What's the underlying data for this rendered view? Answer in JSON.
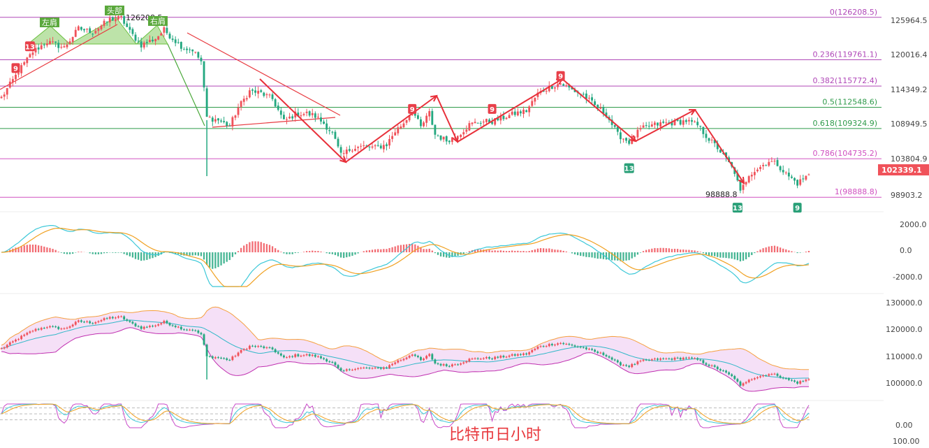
{
  "footer_title": "比特币日小时",
  "colors": {
    "up": "#f0525a",
    "down": "#24a880",
    "fib": "#b048b8",
    "fib_green": "#2e9a4a",
    "price_tag": "#f0525a",
    "ma_yellow": "#f0a020",
    "ma_cyan": "#3cc8d8",
    "ma_magenta": "#c848c8",
    "band_fill": "#f3d8f5",
    "arrow": "#e8303a",
    "shoulder": "#6cc040"
  },
  "price_axis": {
    "ticks": [
      "125964.5",
      "120016.4",
      "114349.2",
      "108949.5",
      "103804.9",
      "98903.2"
    ],
    "current_price": "102339.1",
    "low_label": "98888.8",
    "peak_label": "126208.5"
  },
  "fibonacci": [
    {
      "label": "0(126208.5)",
      "ratio": 0,
      "price": 126208.5
    },
    {
      "label": "0.236(119761.1)",
      "ratio": 0.236,
      "price": 119761.1
    },
    {
      "label": "0.382(115772.4)",
      "ratio": 0.382,
      "price": 115772.4
    },
    {
      "label": "0.5(112548.6)",
      "ratio": 0.5,
      "price": 112548.6
    },
    {
      "label": "0.618(109324.9)",
      "ratio": 0.618,
      "price": 109324.9
    },
    {
      "label": "0.786(104735.2)",
      "ratio": 0.786,
      "price": 104735.2
    },
    {
      "label": "1(98888.8)",
      "ratio": 1,
      "price": 98888.8
    }
  ],
  "patterns": {
    "left_shoulder": "左肩",
    "head": "头部",
    "right_shoulder": "右肩"
  },
  "td_badges": [
    {
      "text": "9",
      "price": 118500,
      "bar": 5,
      "kind": "up"
    },
    {
      "text": "13",
      "price": 121800,
      "bar": 10,
      "kind": "up"
    },
    {
      "text": "9",
      "price": 112300,
      "bar": 144,
      "kind": "up"
    },
    {
      "text": "9",
      "price": 112300,
      "bar": 172,
      "kind": "up"
    },
    {
      "text": "9",
      "price": 117300,
      "bar": 196,
      "kind": "up"
    },
    {
      "text": "13",
      "price": 103300,
      "bar": 220,
      "kind": "down"
    },
    {
      "text": "13",
      "price": 97300,
      "bar": 258,
      "kind": "down"
    },
    {
      "text": "9",
      "price": 97300,
      "bar": 279,
      "kind": "down"
    }
  ],
  "macd_axis": {
    "ticks": [
      "2000.0",
      "0.0",
      "-2000.0"
    ]
  },
  "band_axis": {
    "ticks": [
      "130000.0",
      "120000.0",
      "110000.0",
      "100000.0"
    ]
  },
  "osc_axis": {
    "ticks": [
      "0.00",
      "100.00"
    ]
  },
  "chart_data": {
    "type": "candlestick",
    "price_range": [
      97000,
      128200
    ],
    "close_path": [
      [
        0,
        114000
      ],
      [
        6,
        118000
      ],
      [
        11,
        121000
      ],
      [
        16,
        122500
      ],
      [
        22,
        121600
      ],
      [
        27,
        124500
      ],
      [
        32,
        124000
      ],
      [
        38,
        125900
      ],
      [
        42,
        126100
      ],
      [
        45,
        124000
      ],
      [
        49,
        122000
      ],
      [
        54,
        123000
      ],
      [
        57,
        124300
      ],
      [
        60,
        123000
      ],
      [
        64,
        121500
      ],
      [
        67,
        121300
      ],
      [
        70,
        119500
      ],
      [
        72,
        111000
      ],
      [
        76,
        110600
      ],
      [
        80,
        109700
      ],
      [
        83,
        112500
      ],
      [
        87,
        115000
      ],
      [
        91,
        114700
      ],
      [
        95,
        113800
      ],
      [
        99,
        110400
      ],
      [
        103,
        111500
      ],
      [
        107,
        111600
      ],
      [
        110,
        111200
      ],
      [
        113,
        110100
      ],
      [
        116,
        108600
      ],
      [
        119,
        105200
      ],
      [
        123,
        106400
      ],
      [
        127,
        106600
      ],
      [
        131,
        106400
      ],
      [
        135,
        106900
      ],
      [
        138,
        108900
      ],
      [
        141,
        110200
      ],
      [
        144,
        112100
      ],
      [
        147,
        109500
      ],
      [
        150,
        111700
      ],
      [
        152,
        108400
      ],
      [
        156,
        107500
      ],
      [
        160,
        108300
      ],
      [
        164,
        109900
      ],
      [
        168,
        110400
      ],
      [
        172,
        110400
      ],
      [
        176,
        111000
      ],
      [
        180,
        111600
      ],
      [
        184,
        112000
      ],
      [
        188,
        114600
      ],
      [
        192,
        115600
      ],
      [
        196,
        116200
      ],
      [
        200,
        115200
      ],
      [
        204,
        114400
      ],
      [
        208,
        112800
      ],
      [
        212,
        111500
      ],
      [
        216,
        108400
      ],
      [
        220,
        107300
      ],
      [
        224,
        109200
      ],
      [
        228,
        109800
      ],
      [
        232,
        110100
      ],
      [
        236,
        110200
      ],
      [
        240,
        110500
      ],
      [
        244,
        109800
      ],
      [
        248,
        107700
      ],
      [
        251,
        106400
      ],
      [
        254,
        104700
      ],
      [
        257,
        102700
      ],
      [
        259,
        99600
      ],
      [
        262,
        102400
      ],
      [
        266,
        103500
      ],
      [
        269,
        104400
      ],
      [
        272,
        103900
      ],
      [
        275,
        102400
      ],
      [
        279,
        101000
      ],
      [
        283,
        102339.1
      ]
    ],
    "macd_range": [
      -2600,
      2600
    ],
    "band_range": [
      95000,
      133000
    ],
    "osc_range": [
      -20,
      100
    ]
  }
}
